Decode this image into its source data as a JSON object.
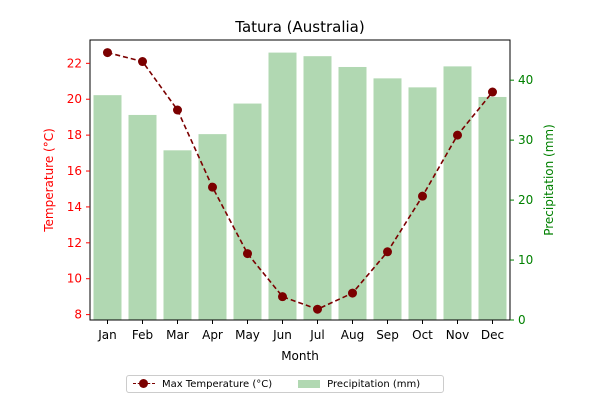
{
  "chart_data": {
    "type": "bar+line",
    "title": "Tatura (Australia)",
    "xlabel": "Month",
    "categories": [
      "Jan",
      "Feb",
      "Mar",
      "Apr",
      "May",
      "Jun",
      "Jul",
      "Aug",
      "Sep",
      "Oct",
      "Nov",
      "Dec"
    ],
    "left_axis": {
      "label": "Temperature (°C)",
      "color": "#ff0000",
      "range": [
        7.7,
        23.3
      ],
      "ticks": [
        8,
        10,
        12,
        14,
        16,
        18,
        20,
        22
      ]
    },
    "right_axis": {
      "label": "Precipitation (mm)",
      "color": "#008000",
      "range": [
        0,
        46.7
      ],
      "ticks": [
        0,
        10,
        20,
        30,
        40
      ]
    },
    "series": [
      {
        "name": "Max Temperature (°C)",
        "type": "line",
        "axis": "left",
        "color": "#7b0000",
        "style": "dashed",
        "marker": "circle",
        "values": [
          22.6,
          22.1,
          19.4,
          15.1,
          11.4,
          9.0,
          8.3,
          9.2,
          11.5,
          14.6,
          18.0,
          20.4
        ]
      },
      {
        "name": "Precipitation (mm)",
        "type": "bar",
        "axis": "right",
        "color": "#b1d8b2",
        "values": [
          37.5,
          34.2,
          28.3,
          31.0,
          36.1,
          44.6,
          44.0,
          42.2,
          40.3,
          38.8,
          42.3,
          37.2
        ]
      }
    ],
    "grid": false,
    "legend": "bottom-center"
  }
}
